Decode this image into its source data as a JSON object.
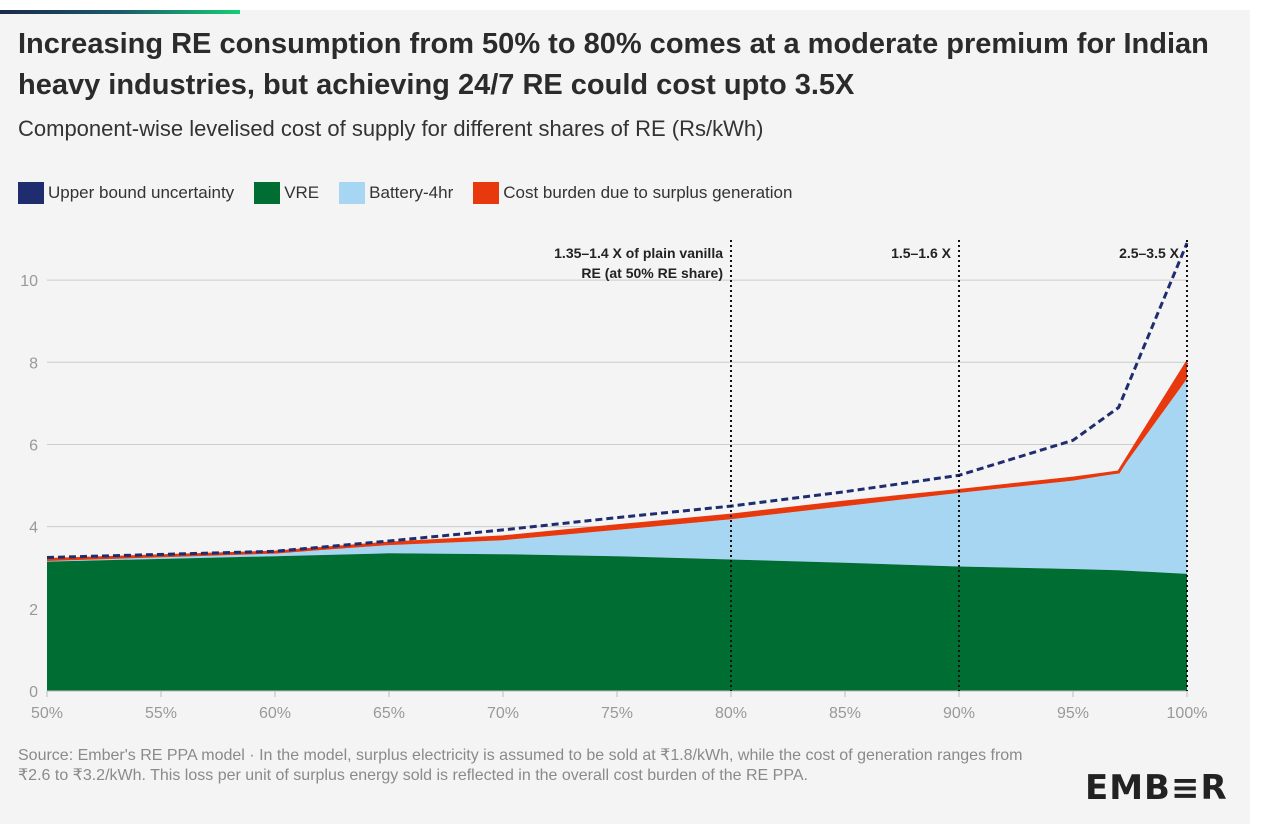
{
  "title": "Increasing RE consumption from 50% to 80% comes at a moderate premium for Indian heavy industries, but achieving 24/7 RE could cost upto 3.5X",
  "subtitle": "Component-wise levelised cost of supply for different shares of RE (Rs/kWh)",
  "source": "Source: Ember's RE PPA model · In the model, surplus electricity is assumed to be sold at ₹1.8/kWh, while the cost of generation ranges from ₹2.6 to ₹3.2/kWh. This loss per unit of surplus energy sold is reflected in the overall cost burden of the RE PPA.",
  "logo": "EMB≡R",
  "colors": {
    "upper_bound": "#1f2d6e",
    "vre": "#006d32",
    "battery": "#a7d6f3",
    "surplus": "#e8380d",
    "grid": "#cccccc",
    "axis_text": "#999999"
  },
  "chart_data": {
    "type": "area",
    "x": [
      50,
      60,
      65,
      70,
      75,
      80,
      85,
      90,
      95,
      97,
      100
    ],
    "x_ticks": [
      50,
      55,
      60,
      65,
      70,
      75,
      80,
      85,
      90,
      95,
      100
    ],
    "x_tick_labels": [
      "50%",
      "55%",
      "60%",
      "65%",
      "70%",
      "75%",
      "80%",
      "85%",
      "90%",
      "95%",
      "100%"
    ],
    "y_ticks": [
      0,
      2,
      4,
      6,
      8,
      10
    ],
    "y_tick_labels": [
      "0",
      "2",
      "4",
      "6",
      "8",
      "10"
    ],
    "ylim": [
      0,
      11
    ],
    "xlim": [
      50,
      100
    ],
    "grid": true,
    "legend_position": "top-left",
    "series": [
      {
        "name": "Upper bound uncertainty",
        "kind": "dashed-line",
        "values": [
          3.25,
          3.4,
          3.65,
          3.92,
          4.22,
          4.5,
          4.85,
          5.25,
          6.1,
          6.9,
          10.9
        ]
      },
      {
        "name": "VRE",
        "kind": "area",
        "values": [
          3.15,
          3.28,
          3.35,
          3.33,
          3.28,
          3.2,
          3.12,
          3.03,
          2.97,
          2.94,
          2.85
        ]
      },
      {
        "name": "Battery-4hr",
        "kind": "area-top",
        "values": [
          3.18,
          3.35,
          3.55,
          3.67,
          3.92,
          4.18,
          4.5,
          4.82,
          5.12,
          5.3,
          7.6
        ]
      },
      {
        "name": "Cost burden due to surplus generation",
        "kind": "band-top",
        "values": [
          3.2,
          3.38,
          3.6,
          3.75,
          4.02,
          4.28,
          4.6,
          4.88,
          5.18,
          5.33,
          8.0
        ]
      }
    ],
    "annotations": [
      {
        "x": 80,
        "lines": [
          "1.35–1.4 X of plain vanilla",
          "RE (at 50% RE share)"
        ]
      },
      {
        "x": 90,
        "lines": [
          "1.5–1.6 X"
        ]
      },
      {
        "x": 100,
        "lines": [
          "2.5–3.5 X"
        ]
      }
    ]
  }
}
